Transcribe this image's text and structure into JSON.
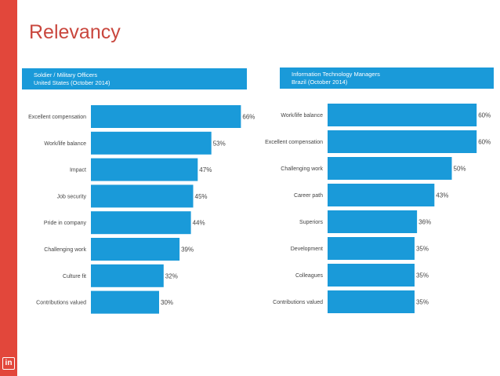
{
  "title": "Relevancy",
  "colors": {
    "accent": "#e2473b",
    "bar": "#1a9ad9",
    "title": "#c9473e"
  },
  "logo": {
    "icon": "linkedin-icon",
    "text": "in"
  },
  "chart_data": [
    {
      "type": "bar",
      "orientation": "horizontal",
      "header_line1": "Soldier / Military Officers",
      "header_line2": "United States (October 2014)",
      "categories": [
        "Excellent compensation",
        "Work/life balance",
        "Impact",
        "Job security",
        "Pride in company",
        "Challenging work",
        "Culture fit",
        "Contributions valued"
      ],
      "values": [
        66,
        53,
        47,
        45,
        44,
        39,
        32,
        30
      ],
      "labels": [
        "66%",
        "53%",
        "47%",
        "45%",
        "44%",
        "39%",
        "32%",
        "30%"
      ],
      "xlim": [
        0,
        100
      ]
    },
    {
      "type": "bar",
      "orientation": "horizontal",
      "header_line1": "Information Technology Managers",
      "header_line2": "Brazil (October 2014)",
      "categories": [
        "Work/life balance",
        "Excellent compensation",
        "Challenging work",
        "Career path",
        "Superiors",
        "Development",
        "Colleagues",
        "Contributions valued"
      ],
      "values": [
        60,
        60,
        50,
        43,
        36,
        35,
        35,
        35
      ],
      "labels": [
        "60%",
        "60%",
        "50%",
        "43%",
        "36%",
        "35%",
        "35%",
        "35%"
      ],
      "xlim": [
        0,
        100
      ]
    }
  ]
}
